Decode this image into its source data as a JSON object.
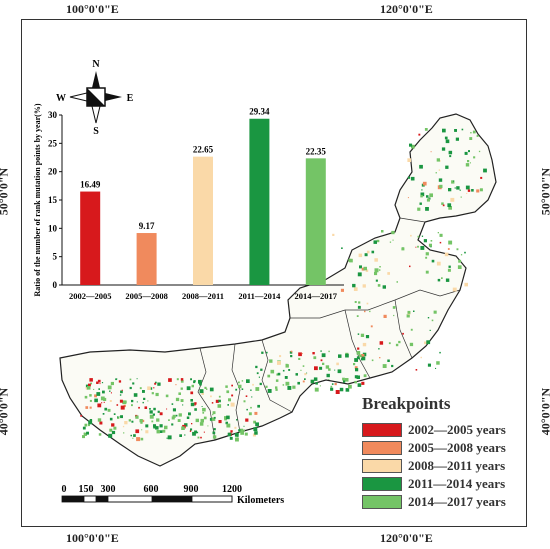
{
  "coordinates": {
    "top_left": "100°0'0\"E",
    "top_right": "120°0'0\"E",
    "bottom_left": "100°0'0\"E",
    "bottom_right": "120°0'0\"E",
    "left_upper": "50°0'0\"N",
    "left_lower": "40°0'0\"N",
    "right_upper": "50°0'0\"N",
    "right_lower": "40°0'0\"N"
  },
  "compass": {
    "north": "N",
    "south": "S",
    "east": "E",
    "west": "W"
  },
  "chart_data": {
    "type": "bar",
    "ylabel": "Ratio of the number of rank mutation points by year(%)",
    "ylim": [
      0,
      30
    ],
    "yticks": [
      0,
      5,
      10,
      15,
      20,
      25,
      30
    ],
    "categories": [
      "2002—2005",
      "2005—2008",
      "2008—2011",
      "2011—2014",
      "2014—2017"
    ],
    "values": [
      16.49,
      9.17,
      22.65,
      29.34,
      22.35
    ],
    "value_labels": [
      "16.49",
      "9.17",
      "22.65",
      "29.34",
      "22.35"
    ],
    "colors": [
      "#d7191c",
      "#f08a5d",
      "#fad9a8",
      "#1a9641",
      "#74c466"
    ]
  },
  "legend": {
    "title": "Breakpoints",
    "items": [
      {
        "label": "2002—2005 years",
        "color": "#d7191c"
      },
      {
        "label": "2005—2008 years",
        "color": "#f08a5d"
      },
      {
        "label": "2008—2011 years",
        "color": "#fad9a8"
      },
      {
        "label": "2011—2014 years",
        "color": "#1a9641"
      },
      {
        "label": "2014—2017 years",
        "color": "#74c466"
      }
    ]
  },
  "scale_bar": {
    "ticks": [
      "0",
      "150",
      "300",
      "600",
      "900",
      "1200"
    ],
    "unit": "Kilometers"
  }
}
